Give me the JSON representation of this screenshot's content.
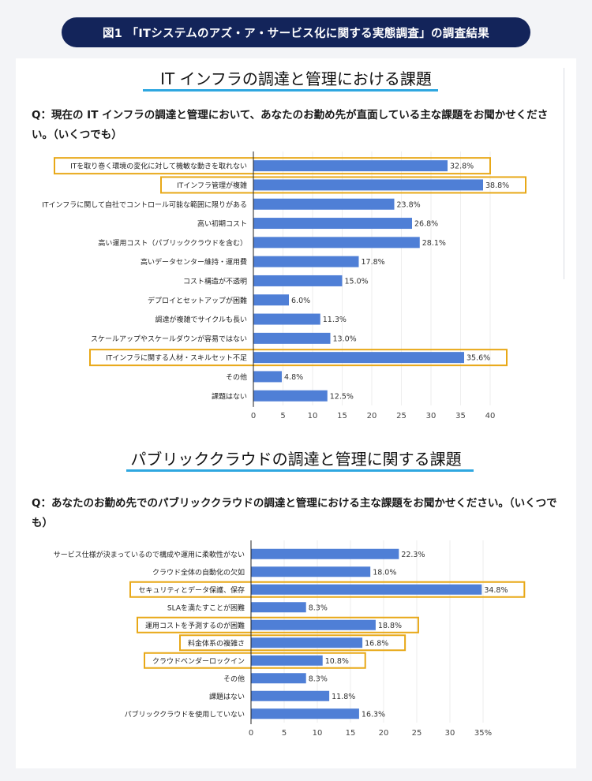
{
  "header": {
    "title": "図1 「ITシステムのアズ・ア・サービス化に関する実態調査」の調査結果"
  },
  "sections": [
    {
      "heading": "IT インフラの調達と管理における課題",
      "question": "Q：現在の IT インフラの調達と管理において、あなたのお勤め先が直面している主な課題をお聞かせください。（いくつでも）"
    },
    {
      "heading": "パブリッククラウドの調達と管理に関する課題",
      "question": "Q：あなたのお勤め先でのパブリッククラウドの調達と管理における主な課題をお聞かせください。（いくつでも）"
    }
  ],
  "colors": {
    "bar": "#4f7fd6",
    "highlight": "#e8a817",
    "banner": "#13245a",
    "underline": "#2ea7e0"
  },
  "chart_data": [
    {
      "type": "bar",
      "orientation": "horizontal",
      "title": "IT インフラの調達と管理における課題",
      "categories": [
        "ITを取り巻く環境の変化に対して機敏な動きを取れない",
        "ITインフラ管理が複雑",
        "ITインフラに関して自社でコントロール可能な範囲に限りがある",
        "高い初期コスト",
        "高い運用コスト（パブリッククラウドを含む）",
        "高いデータセンター維持・運用費",
        "コスト構造が不透明",
        "デプロイとセットアップが困難",
        "調達が複雑でサイクルも長い",
        "スケールアップやスケールダウンが容易ではない",
        "ITインフラに関する人材・スキルセット不足",
        "その他",
        "課題はない"
      ],
      "values": [
        32.8,
        38.8,
        23.8,
        26.8,
        28.1,
        17.8,
        15.0,
        6.0,
        11.3,
        13.0,
        35.6,
        4.8,
        12.5
      ],
      "value_labels": [
        "32.8%",
        "38.8%",
        "23.8%",
        "26.8%",
        "28.1%",
        "17.8%",
        "15.0%",
        "6.0%",
        "11.3%",
        "13.0%",
        "35.6%",
        "4.8%",
        "12.5%"
      ],
      "ticks": [
        "0",
        "5",
        "10",
        "15",
        "20",
        "25",
        "30",
        "35",
        "40"
      ],
      "xlim": [
        0,
        40
      ],
      "highlighted": [
        0,
        1,
        10
      ]
    },
    {
      "type": "bar",
      "orientation": "horizontal",
      "title": "パブリッククラウドの調達と管理に関する課題",
      "categories": [
        "サービス仕様が決まっているので構成や運用に柔軟性がない",
        "クラウド全体の自動化の欠如",
        "セキュリティとデータ保護、保存",
        "SLAを満たすことが困難",
        "運用コストを予測するのが困難",
        "料金体系の複雑さ",
        "クラウドベンダーロックイン",
        "その他",
        "課題はない",
        "パブリッククラウドを使用していない"
      ],
      "values": [
        22.3,
        18.0,
        34.8,
        8.3,
        18.8,
        16.8,
        10.8,
        8.3,
        11.8,
        16.3
      ],
      "value_labels": [
        "22.3%",
        "18.0%",
        "34.8%",
        "8.3%",
        "18.8%",
        "16.8%",
        "10.8%",
        "8.3%",
        "11.8%",
        "16.3%"
      ],
      "ticks": [
        "0",
        "5",
        "10",
        "15",
        "20",
        "25",
        "30",
        "35%"
      ],
      "xlim": [
        0,
        35
      ],
      "highlighted": [
        2,
        4,
        5,
        6
      ]
    }
  ]
}
